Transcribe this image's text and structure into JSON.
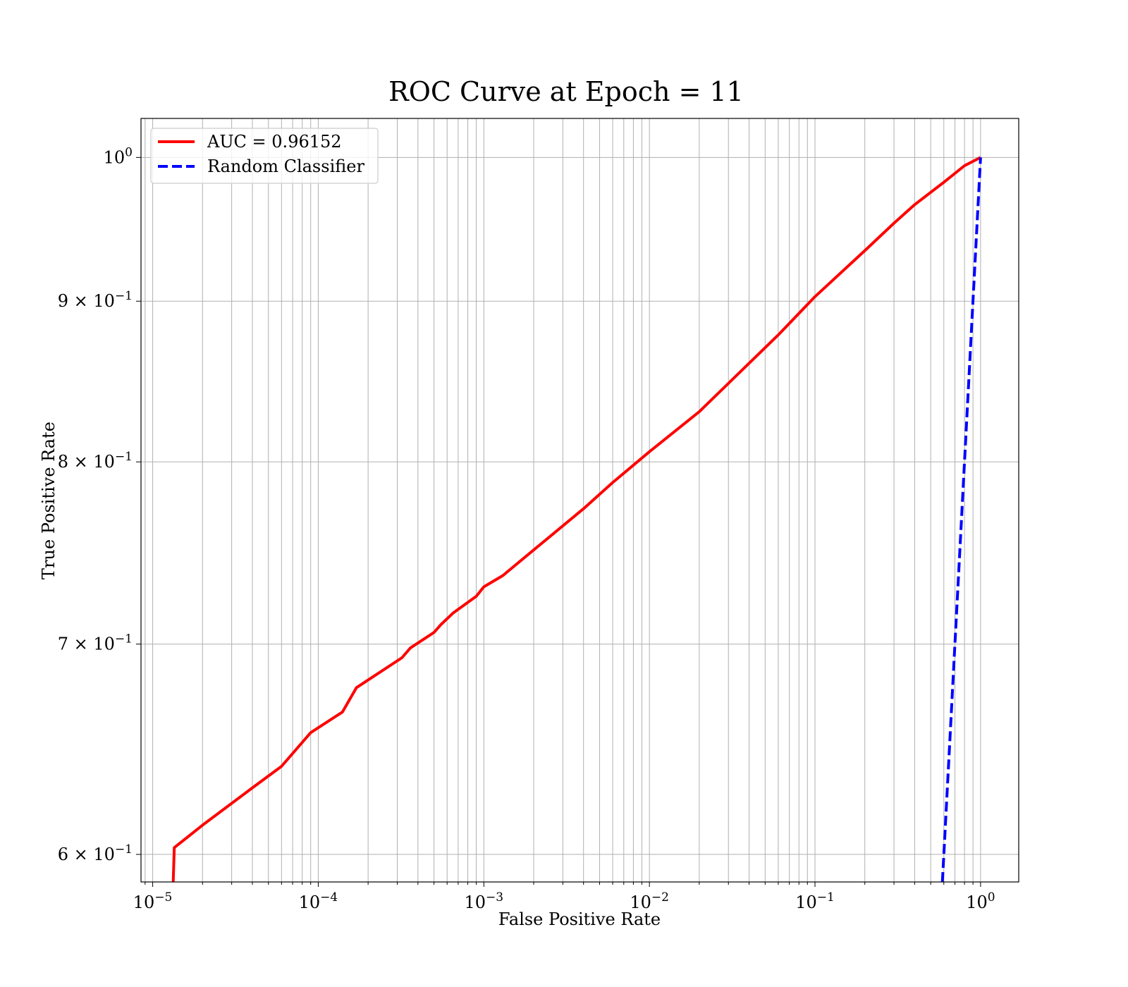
{
  "chart_data": {
    "type": "line",
    "title": "ROC Curve at Epoch = 11",
    "xlabel": "False Positive Rate",
    "ylabel": "True Positive Rate",
    "xscale": "log",
    "yscale": "log",
    "xlim": [
      8.5e-06,
      1.7
    ],
    "ylim": [
      0.588,
      1.029
    ],
    "grid": "on (major and minor)",
    "legend_placement": "upper left",
    "x_ticks": [
      {
        "value": 1e-05,
        "base": "10",
        "exp": "−5"
      },
      {
        "value": 0.0001,
        "base": "10",
        "exp": "−4"
      },
      {
        "value": 0.001,
        "base": "10",
        "exp": "−3"
      },
      {
        "value": 0.01,
        "base": "10",
        "exp": "−2"
      },
      {
        "value": 0.1,
        "base": "10",
        "exp": "−1"
      },
      {
        "value": 1,
        "base": "10",
        "exp": "0"
      }
    ],
    "y_ticks": [
      {
        "value": 0.6,
        "base": "6 × 10",
        "exp": "−1"
      },
      {
        "value": 0.7,
        "base": "7 × 10",
        "exp": "−1"
      },
      {
        "value": 0.8,
        "base": "8 × 10",
        "exp": "−1"
      },
      {
        "value": 0.9,
        "base": "9 × 10",
        "exp": "−1"
      },
      {
        "value": 1,
        "base": "10",
        "exp": "0"
      }
    ],
    "series": [
      {
        "name": "AUC = 0.96152",
        "color": "#ff0000",
        "style": "solid",
        "x": [
          1.33e-05,
          1.35e-05,
          2e-05,
          4e-05,
          6e-05,
          9e-05,
          0.00014,
          0.00017,
          0.00032,
          0.00036,
          0.0005,
          0.00055,
          0.00065,
          0.0009,
          0.001,
          0.0013,
          0.002,
          0.004,
          0.006,
          0.01,
          0.02,
          0.04,
          0.06,
          0.1,
          0.2,
          0.3,
          0.4,
          0.6,
          0.8,
          1.0
        ],
        "y": [
          0.588,
          0.603,
          0.613,
          0.63,
          0.64,
          0.656,
          0.666,
          0.678,
          0.693,
          0.698,
          0.706,
          0.71,
          0.716,
          0.725,
          0.73,
          0.736,
          0.75,
          0.773,
          0.788,
          0.806,
          0.83,
          0.86,
          0.878,
          0.903,
          0.934,
          0.953,
          0.966,
          0.982,
          0.994,
          1.0
        ]
      },
      {
        "name": "Random Classifier",
        "color": "#0000ff",
        "style": "dashed",
        "x": [
          0.588,
          0.6,
          0.7,
          0.8,
          0.9,
          1.0
        ],
        "y": [
          0.588,
          0.6,
          0.7,
          0.8,
          0.9,
          1.0
        ]
      }
    ]
  }
}
